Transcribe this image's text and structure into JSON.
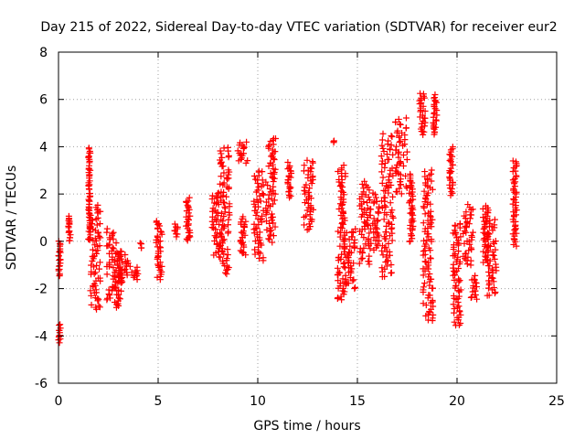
{
  "chart_data": {
    "type": "scatter",
    "title": "Day 215 of 2022, Sidereal Day-to-day VTEC variation (SDTVAR) for receiver eur2",
    "xlabel": "GPS time / hours",
    "ylabel": "SDTVAR / TECUs",
    "xlim": [
      0,
      25
    ],
    "ylim": [
      -6,
      8
    ],
    "xticks": [
      "0",
      "5",
      "10",
      "15",
      "20",
      "25"
    ],
    "yticks": [
      "-6",
      "-4",
      "-2",
      "0",
      "2",
      "4",
      "6",
      "8"
    ],
    "xtick_values": [
      0,
      5,
      10,
      15,
      20,
      25
    ],
    "ytick_values": [
      -6,
      -4,
      -2,
      0,
      2,
      4,
      6,
      8
    ],
    "grid": true,
    "marker": "+",
    "color": "#ff0000",
    "series": [
      {
        "name": "SDTVAR",
        "segments": [
          {
            "x0": 0.0,
            "x1": 0.1,
            "y0": -4.3,
            "y1": -3.5
          },
          {
            "x0": 0.0,
            "x1": 0.1,
            "y0": -1.5,
            "y1": 0.0
          },
          {
            "x0": 0.45,
            "x1": 0.6,
            "y0": 0.0,
            "y1": 1.1
          },
          {
            "x0": 1.5,
            "x1": 1.6,
            "y0": 0.0,
            "y1": 4.0
          },
          {
            "x0": 1.6,
            "x1": 2.1,
            "y0": -2.9,
            "y1": 1.5
          },
          {
            "x0": 2.4,
            "x1": 3.0,
            "y0": -2.5,
            "y1": 0.5
          },
          {
            "x0": 2.8,
            "x1": 3.2,
            "y0": -2.8,
            "y1": -0.5
          },
          {
            "x0": 3.0,
            "x1": 3.5,
            "y0": -1.6,
            "y1": -0.4
          },
          {
            "x0": 3.5,
            "x1": 4.0,
            "y0": -1.6,
            "y1": -1.1
          },
          {
            "x0": 4.1,
            "x1": 4.2,
            "y0": -0.3,
            "y1": -0.1
          },
          {
            "x0": 4.9,
            "x1": 5.2,
            "y0": -1.6,
            "y1": 0.9
          },
          {
            "x0": 5.8,
            "x1": 6.0,
            "y0": 0.2,
            "y1": 0.7
          },
          {
            "x0": 6.4,
            "x1": 6.6,
            "y0": 0.0,
            "y1": 1.8
          },
          {
            "x0": 7.7,
            "x1": 8.1,
            "y0": -0.6,
            "y1": 2.1
          },
          {
            "x0": 8.1,
            "x1": 8.6,
            "y0": -1.4,
            "y1": 4.0
          },
          {
            "x0": 9.0,
            "x1": 9.5,
            "y0": 3.3,
            "y1": 4.2
          },
          {
            "x0": 9.1,
            "x1": 9.4,
            "y0": -0.6,
            "y1": 1.0
          },
          {
            "x0": 9.8,
            "x1": 10.3,
            "y0": -0.8,
            "y1": 3.0
          },
          {
            "x0": 10.4,
            "x1": 10.9,
            "y0": 0.0,
            "y1": 4.4
          },
          {
            "x0": 11.5,
            "x1": 11.7,
            "y0": 1.8,
            "y1": 3.3
          },
          {
            "x0": 12.3,
            "x1": 12.8,
            "y0": 0.5,
            "y1": 3.4
          },
          {
            "x0": 13.8,
            "x1": 13.9,
            "y0": 4.2,
            "y1": 4.2
          },
          {
            "x0": 14.0,
            "x1": 14.4,
            "y0": -2.5,
            "y1": 3.2
          },
          {
            "x0": 14.4,
            "x1": 14.9,
            "y0": -2.0,
            "y1": 0.5
          },
          {
            "x0": 15.1,
            "x1": 15.6,
            "y0": -1.0,
            "y1": 2.5
          },
          {
            "x0": 15.6,
            "x1": 16.1,
            "y0": -0.4,
            "y1": 2.0
          },
          {
            "x0": 16.2,
            "x1": 16.8,
            "y0": -1.5,
            "y1": 4.5
          },
          {
            "x0": 16.9,
            "x1": 17.5,
            "y0": 2.0,
            "y1": 5.2
          },
          {
            "x0": 17.6,
            "x1": 17.8,
            "y0": 0.0,
            "y1": 2.8
          },
          {
            "x0": 18.1,
            "x1": 18.4,
            "y0": 4.5,
            "y1": 6.3
          },
          {
            "x0": 18.3,
            "x1": 18.8,
            "y0": -3.4,
            "y1": 3.0
          },
          {
            "x0": 18.8,
            "x1": 19.0,
            "y0": 4.5,
            "y1": 6.2
          },
          {
            "x0": 19.6,
            "x1": 19.8,
            "y0": 2.0,
            "y1": 4.0
          },
          {
            "x0": 19.8,
            "x1": 20.2,
            "y0": -3.6,
            "y1": 0.8
          },
          {
            "x0": 20.3,
            "x1": 20.8,
            "y0": -1.0,
            "y1": 1.5
          },
          {
            "x0": 20.7,
            "x1": 21.0,
            "y0": -2.5,
            "y1": -1.5
          },
          {
            "x0": 21.3,
            "x1": 21.6,
            "y0": -1.0,
            "y1": 1.5
          },
          {
            "x0": 21.5,
            "x1": 22.0,
            "y0": -2.3,
            "y1": 1.0
          },
          {
            "x0": 22.8,
            "x1": 23.0,
            "y0": -0.2,
            "y1": 3.4
          }
        ]
      }
    ]
  }
}
